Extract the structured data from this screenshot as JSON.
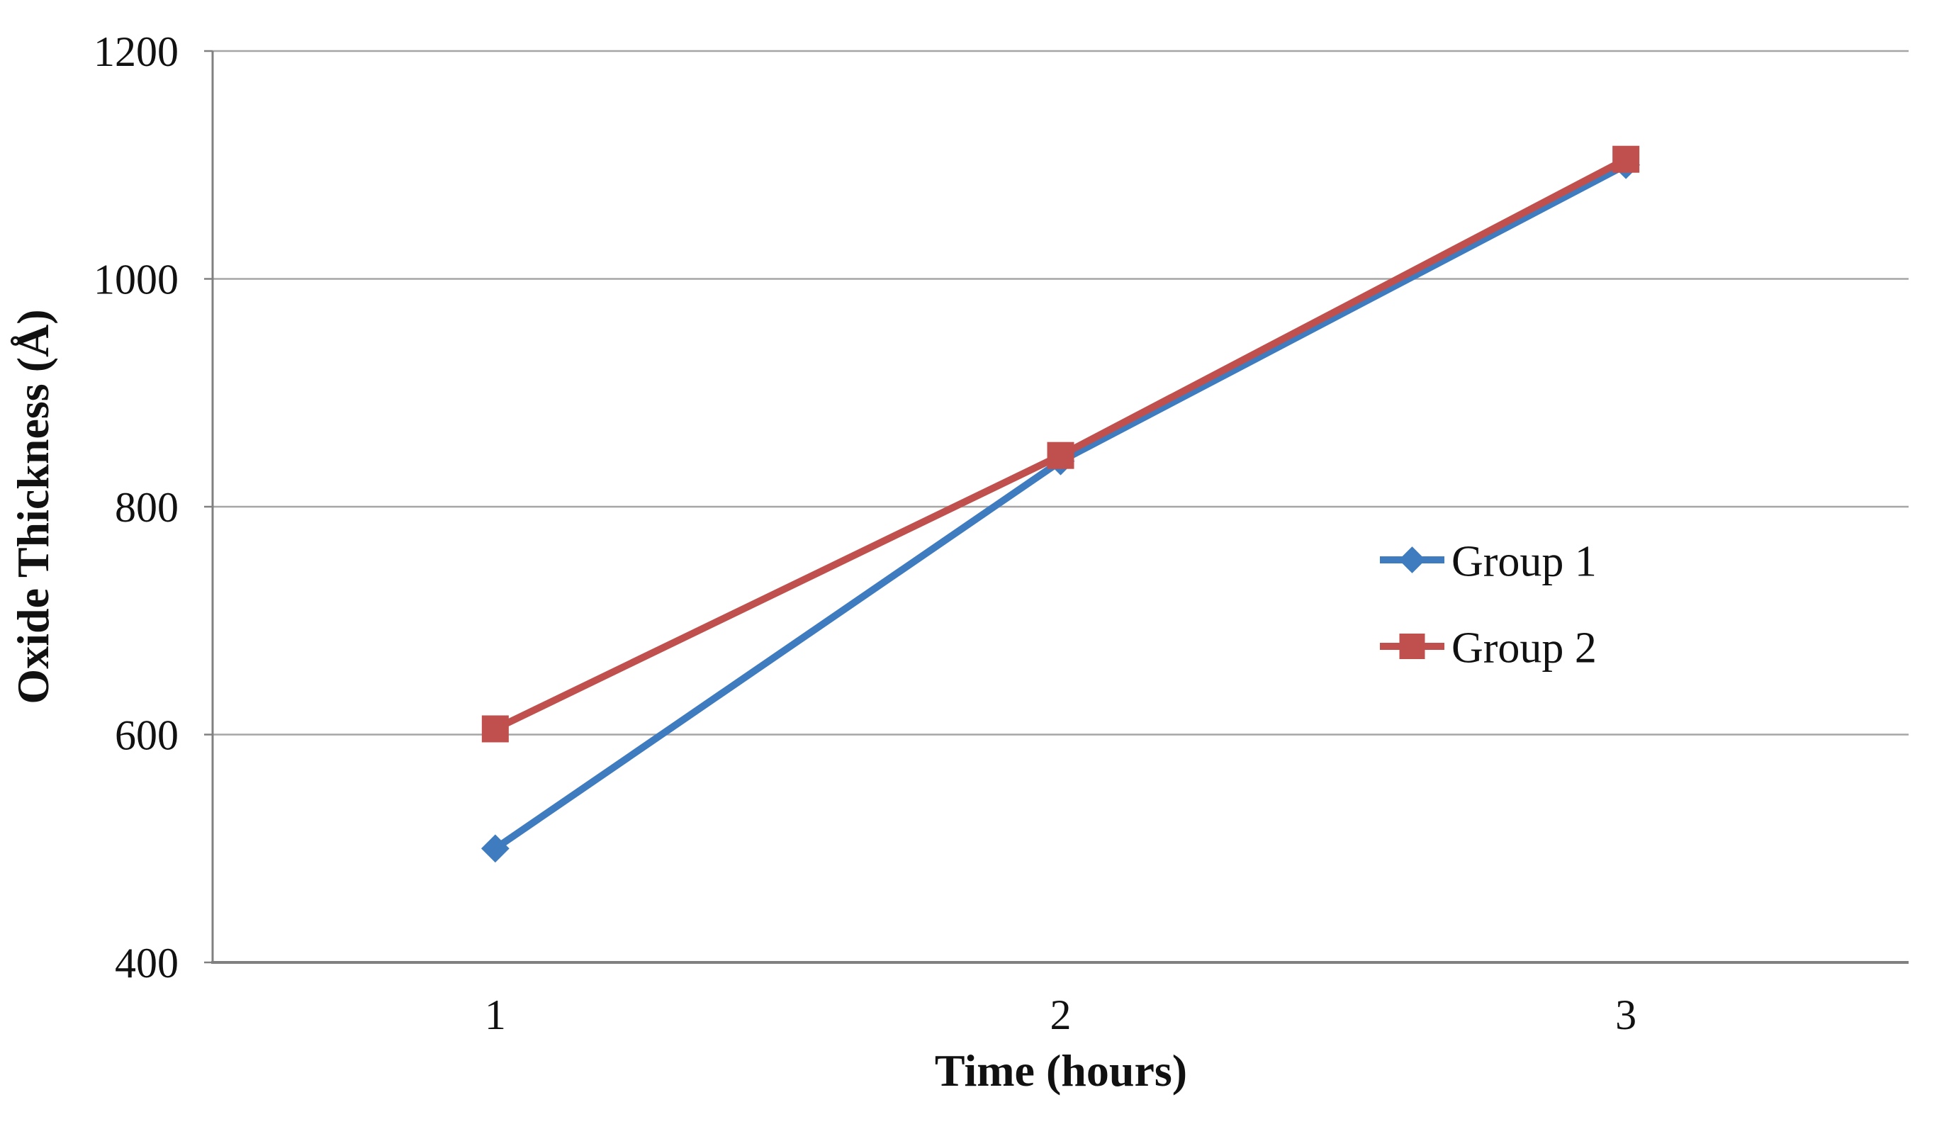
{
  "chart_data": {
    "type": "line",
    "title": "",
    "xlabel": "Time (hours)",
    "ylabel": "Oxide Thickness (Å)",
    "x": [
      "1",
      "2",
      "3"
    ],
    "series": [
      {
        "name": "Group 1",
        "values": [
          500,
          840,
          1100
        ],
        "color": "#3E7CBF",
        "marker": "diamond"
      },
      {
        "name": "Group 2",
        "values": [
          605,
          845,
          1105
        ],
        "color": "#C0504D",
        "marker": "square"
      }
    ],
    "ylim": [
      400,
      1200
    ],
    "yticks": [
      400,
      600,
      800,
      1000,
      1200
    ],
    "grid": true,
    "grid_color": "#A6A6A6",
    "axis_color": "#808080",
    "text_color": "#111111",
    "legend_position": "inside-right-middle",
    "legend_entries": [
      "Group 1",
      "Group 2"
    ]
  }
}
